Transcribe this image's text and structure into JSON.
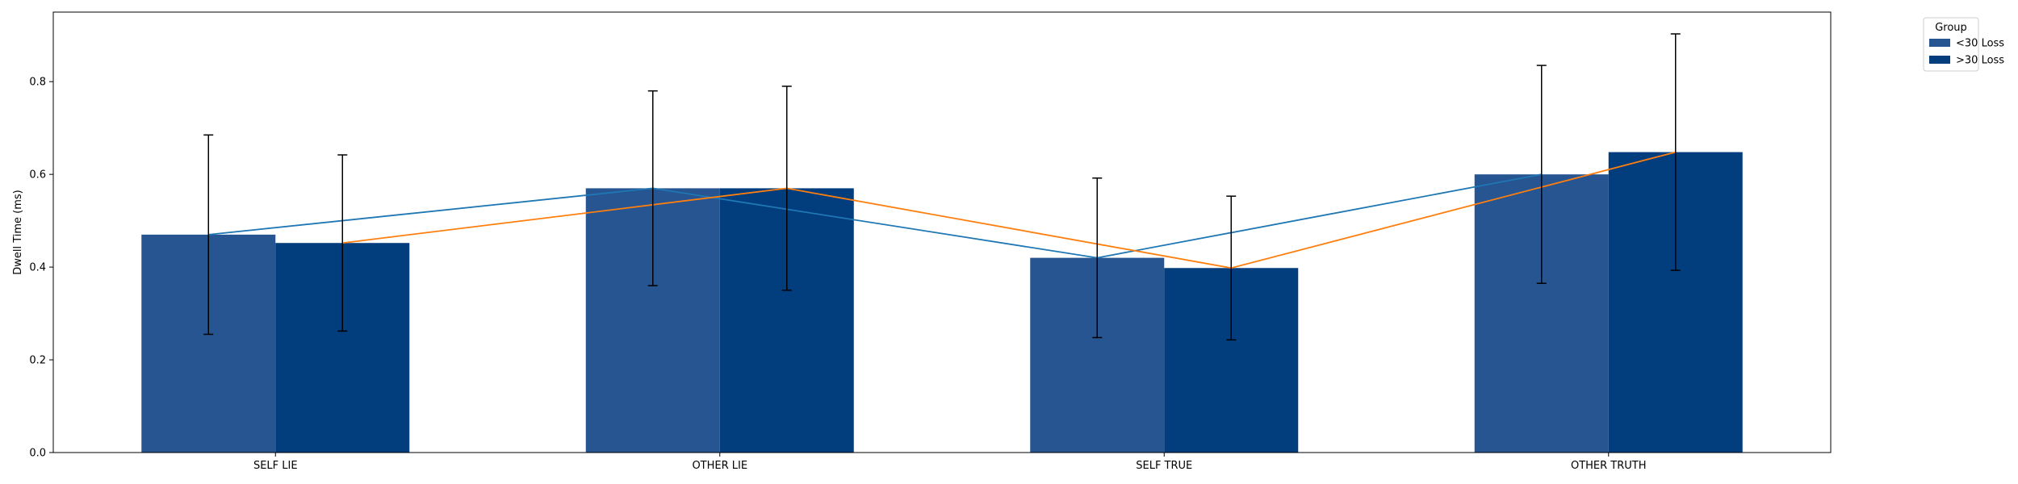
{
  "chart_data": {
    "type": "bar",
    "categories": [
      "SELF LIE",
      "OTHER LIE",
      "SELF TRUE",
      "OTHER TRUTH"
    ],
    "series": [
      {
        "name": "<30 Loss",
        "color": "#265591",
        "line_color": "#1f77b4",
        "values": [
          0.47,
          0.57,
          0.42,
          0.6
        ],
        "error": [
          0.215,
          0.21,
          0.172,
          0.235
        ]
      },
      {
        "name": ">30 Loss",
        "color": "#023d7e",
        "line_color": "#ff7f0e",
        "values": [
          0.452,
          0.57,
          0.398,
          0.648
        ],
        "error": [
          0.19,
          0.22,
          0.155,
          0.255
        ]
      }
    ],
    "xlabel": "",
    "ylabel": "Dwell Time (ms)",
    "ylim": [
      0,
      0.95
    ],
    "yticks": [
      "0.0",
      "0.2",
      "0.4",
      "0.6",
      "0.8"
    ],
    "legend": {
      "title": "Group",
      "placement": "outside-top-right"
    },
    "grid": false
  }
}
